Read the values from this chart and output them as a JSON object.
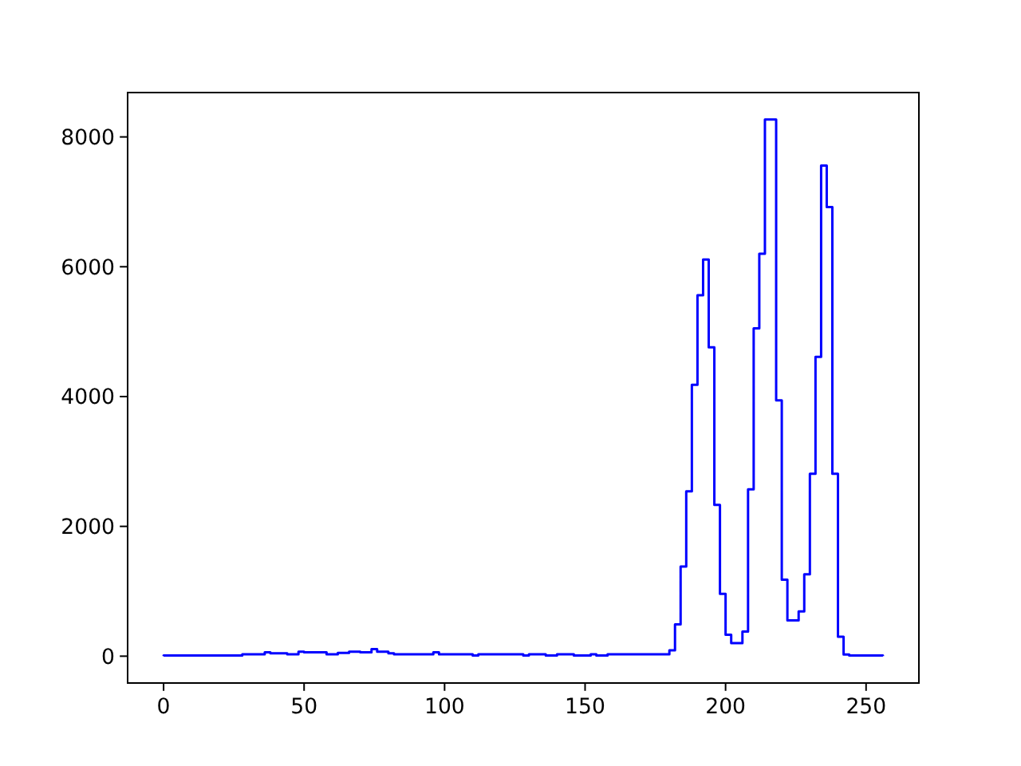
{
  "chart_data": {
    "type": "histogram",
    "color": "#0000ff",
    "bins": [
      0,
      2,
      4,
      6,
      8,
      10,
      12,
      14,
      16,
      18,
      20,
      22,
      24,
      26,
      28,
      30,
      32,
      34,
      36,
      38,
      40,
      42,
      44,
      46,
      48,
      50,
      52,
      54,
      56,
      58,
      60,
      62,
      64,
      66,
      68,
      70,
      72,
      74,
      76,
      78,
      80,
      82,
      84,
      86,
      88,
      90,
      92,
      94,
      96,
      98,
      100,
      102,
      104,
      106,
      108,
      110,
      112,
      114,
      116,
      118,
      120,
      122,
      124,
      126,
      128,
      130,
      132,
      134,
      136,
      138,
      140,
      142,
      144,
      146,
      148,
      150,
      152,
      154,
      156,
      158,
      160,
      162,
      164,
      166,
      168,
      170,
      172,
      174,
      176,
      178,
      180,
      182,
      184,
      186,
      188,
      190,
      192,
      194,
      196,
      198,
      200,
      202,
      204,
      206,
      208,
      210,
      212,
      214,
      216,
      218,
      220,
      222,
      224,
      226,
      228,
      230,
      232,
      234,
      236,
      238,
      240,
      242,
      244,
      246,
      248,
      250,
      252,
      254,
      256
    ],
    "values": [
      10,
      10,
      10,
      10,
      10,
      10,
      10,
      10,
      10,
      10,
      10,
      10,
      10,
      10,
      30,
      30,
      30,
      30,
      60,
      45,
      45,
      45,
      30,
      30,
      70,
      60,
      60,
      60,
      60,
      30,
      30,
      50,
      50,
      70,
      70,
      60,
      60,
      110,
      70,
      70,
      45,
      30,
      30,
      30,
      30,
      30,
      30,
      30,
      60,
      30,
      30,
      30,
      30,
      30,
      30,
      10,
      30,
      30,
      30,
      30,
      30,
      30,
      30,
      30,
      10,
      30,
      30,
      30,
      10,
      10,
      30,
      30,
      30,
      10,
      10,
      10,
      30,
      10,
      10,
      30,
      30,
      30,
      30,
      30,
      30,
      30,
      30,
      30,
      30,
      30,
      90,
      490,
      1380,
      2540,
      4180,
      5560,
      6110,
      4760,
      2330,
      960,
      330,
      200,
      200,
      380,
      2570,
      5050,
      6200,
      8270,
      8270,
      3940,
      1180,
      550,
      550,
      690,
      1260,
      2810,
      4610,
      7560,
      6920,
      2810,
      300,
      25,
      10,
      10,
      10,
      10,
      10,
      10
    ],
    "xlim": [
      -12.8,
      268.8
    ],
    "xticks": [
      0,
      50,
      100,
      150,
      200,
      250
    ],
    "ylim": [
      -413.5,
      8683.5
    ],
    "yticks": [
      0,
      2000,
      4000,
      6000,
      8000
    ]
  }
}
